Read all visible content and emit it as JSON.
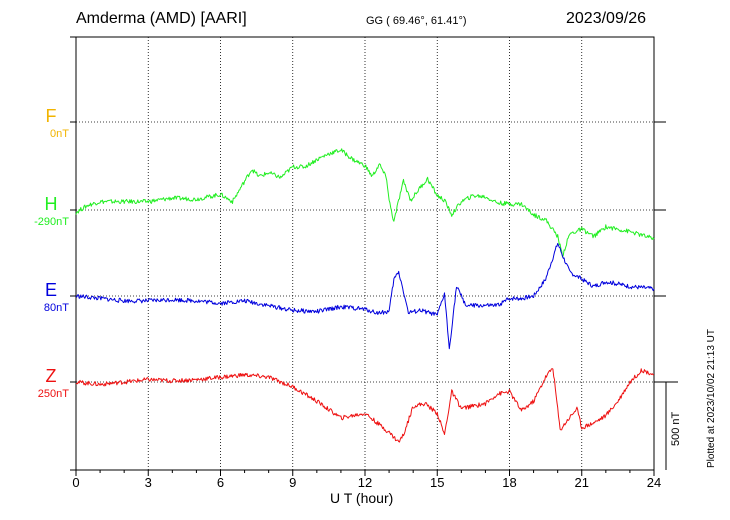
{
  "header": {
    "station": "Amderma (AMD)  [AARI]",
    "coords": "GG ( 69.46°,  61.41°)",
    "date": "2023/09/26"
  },
  "footer": {
    "plotted": "Plotted at 2023/10/02 21:13 UT"
  },
  "chart_data": {
    "type": "line",
    "title": "Amderma (AMD)  [AARI]",
    "xlabel": "U T (hour)",
    "xlim": [
      0,
      24
    ],
    "xticks": [
      "0",
      "3",
      "6",
      "9",
      "12",
      "15",
      "18",
      "21",
      "24"
    ],
    "scale_bar": "500 nT",
    "grid": true,
    "series": [
      {
        "name": "F",
        "baseline": "0nT",
        "color": "#f2b400",
        "points": []
      },
      {
        "name": "H",
        "baseline": "-290nT",
        "color": "#22ee22",
        "points": [
          [
            0,
            -300
          ],
          [
            0.5,
            -270
          ],
          [
            1,
            -255
          ],
          [
            2,
            -255
          ],
          [
            3,
            -255
          ],
          [
            4,
            -240
          ],
          [
            5,
            -245
          ],
          [
            6,
            -225
          ],
          [
            6.5,
            -255
          ],
          [
            7,
            -170
          ],
          [
            7.3,
            -120
          ],
          [
            7.6,
            -150
          ],
          [
            8,
            -135
          ],
          [
            8.5,
            -155
          ],
          [
            9,
            -110
          ],
          [
            9.5,
            -110
          ],
          [
            10,
            -80
          ],
          [
            10.5,
            -55
          ],
          [
            11,
            -40
          ],
          [
            11.5,
            -80
          ],
          [
            12,
            -105
          ],
          [
            12.3,
            -150
          ],
          [
            12.6,
            -100
          ],
          [
            12.9,
            -160
          ],
          [
            13.0,
            -250
          ],
          [
            13.2,
            -340
          ],
          [
            13.4,
            -250
          ],
          [
            13.6,
            -170
          ],
          [
            13.9,
            -250
          ],
          [
            14.3,
            -195
          ],
          [
            14.6,
            -160
          ],
          [
            15,
            -230
          ],
          [
            15.3,
            -250
          ],
          [
            15.6,
            -310
          ],
          [
            16,
            -255
          ],
          [
            16.5,
            -230
          ],
          [
            17,
            -235
          ],
          [
            17.5,
            -260
          ],
          [
            18,
            -265
          ],
          [
            18.5,
            -265
          ],
          [
            19,
            -310
          ],
          [
            19.5,
            -330
          ],
          [
            20,
            -400
          ],
          [
            20.2,
            -480
          ],
          [
            20.5,
            -390
          ],
          [
            21,
            -370
          ],
          [
            21.5,
            -400
          ],
          [
            22,
            -360
          ],
          [
            23,
            -380
          ],
          [
            24,
            -410
          ]
        ]
      },
      {
        "name": "E",
        "baseline": "80nT",
        "color": "#0000dd",
        "points": [
          [
            0,
            80
          ],
          [
            1,
            70
          ],
          [
            2,
            60
          ],
          [
            3,
            60
          ],
          [
            4,
            65
          ],
          [
            5,
            60
          ],
          [
            6,
            50
          ],
          [
            7,
            60
          ],
          [
            8,
            40
          ],
          [
            9,
            20
          ],
          [
            10,
            15
          ],
          [
            11,
            35
          ],
          [
            12,
            25
          ],
          [
            12.5,
            10
          ],
          [
            13,
            15
          ],
          [
            13.2,
            150
          ],
          [
            13.4,
            180
          ],
          [
            13.6,
            100
          ],
          [
            13.8,
            10
          ],
          [
            14.3,
            20
          ],
          [
            15,
            0
          ],
          [
            15.3,
            90
          ],
          [
            15.5,
            -140
          ],
          [
            15.8,
            120
          ],
          [
            16.2,
            40
          ],
          [
            17,
            40
          ],
          [
            17.5,
            40
          ],
          [
            18,
            70
          ],
          [
            18.5,
            70
          ],
          [
            19,
            80
          ],
          [
            19.5,
            150
          ],
          [
            20,
            300
          ],
          [
            20.2,
            250
          ],
          [
            20.5,
            180
          ],
          [
            21,
            150
          ],
          [
            21.5,
            120
          ],
          [
            22,
            140
          ],
          [
            23,
            120
          ],
          [
            24,
            110
          ]
        ]
      },
      {
        "name": "Z",
        "baseline": "250nT",
        "color": "#ee1111",
        "points": [
          [
            0,
            250
          ],
          [
            1,
            240
          ],
          [
            2,
            250
          ],
          [
            3,
            260
          ],
          [
            4,
            255
          ],
          [
            5,
            260
          ],
          [
            6,
            270
          ],
          [
            7,
            280
          ],
          [
            8,
            270
          ],
          [
            9,
            230
          ],
          [
            10,
            170
          ],
          [
            11,
            100
          ],
          [
            12,
            120
          ],
          [
            12.5,
            80
          ],
          [
            13,
            40
          ],
          [
            13.4,
            0
          ],
          [
            13.6,
            30
          ],
          [
            14,
            150
          ],
          [
            14.5,
            160
          ],
          [
            15,
            120
          ],
          [
            15.3,
            30
          ],
          [
            15.6,
            210
          ],
          [
            16,
            140
          ],
          [
            17,
            160
          ],
          [
            17.5,
            200
          ],
          [
            18,
            210
          ],
          [
            18.5,
            130
          ],
          [
            19,
            170
          ],
          [
            19.5,
            270
          ],
          [
            19.8,
            310
          ],
          [
            20.1,
            50
          ],
          [
            20.4,
            90
          ],
          [
            20.8,
            140
          ],
          [
            21,
            60
          ],
          [
            21.5,
            80
          ],
          [
            22,
            110
          ],
          [
            22.5,
            170
          ],
          [
            23,
            250
          ],
          [
            23.5,
            300
          ],
          [
            24,
            280
          ]
        ]
      }
    ]
  }
}
